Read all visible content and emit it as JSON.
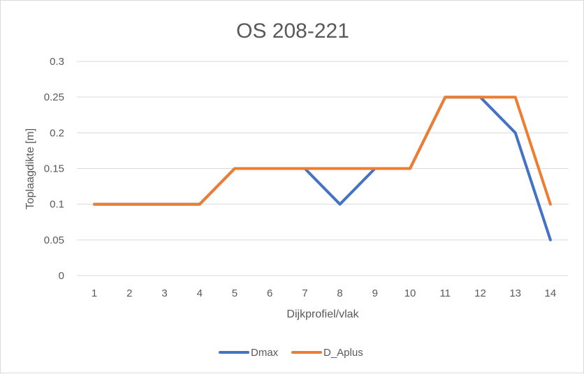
{
  "chart_data": {
    "type": "line",
    "title": "OS 208-221",
    "xlabel": "Dijkprofiel/vlak",
    "ylabel": "Toplaagdikte [m]",
    "categories": [
      "1",
      "2",
      "3",
      "4",
      "5",
      "6",
      "7",
      "8",
      "9",
      "10",
      "11",
      "12",
      "13",
      "14"
    ],
    "ylim": [
      0,
      0.3
    ],
    "yticks": [
      "0",
      "0.05",
      "0.1",
      "0.15",
      "0.2",
      "0.25",
      "0.3"
    ],
    "grid": true,
    "legend_position": "bottom",
    "series": [
      {
        "name": "Dmax",
        "color": "#4472c4",
        "values": [
          0.1,
          0.1,
          0.1,
          0.1,
          0.15,
          0.15,
          0.15,
          0.1,
          0.15,
          0.15,
          0.25,
          0.25,
          0.2,
          0.05
        ]
      },
      {
        "name": "D_Aplus",
        "color": "#ed7d31",
        "values": [
          0.1,
          0.1,
          0.1,
          0.1,
          0.15,
          0.15,
          0.15,
          0.15,
          0.15,
          0.15,
          0.25,
          0.25,
          0.25,
          0.1
        ]
      }
    ]
  }
}
